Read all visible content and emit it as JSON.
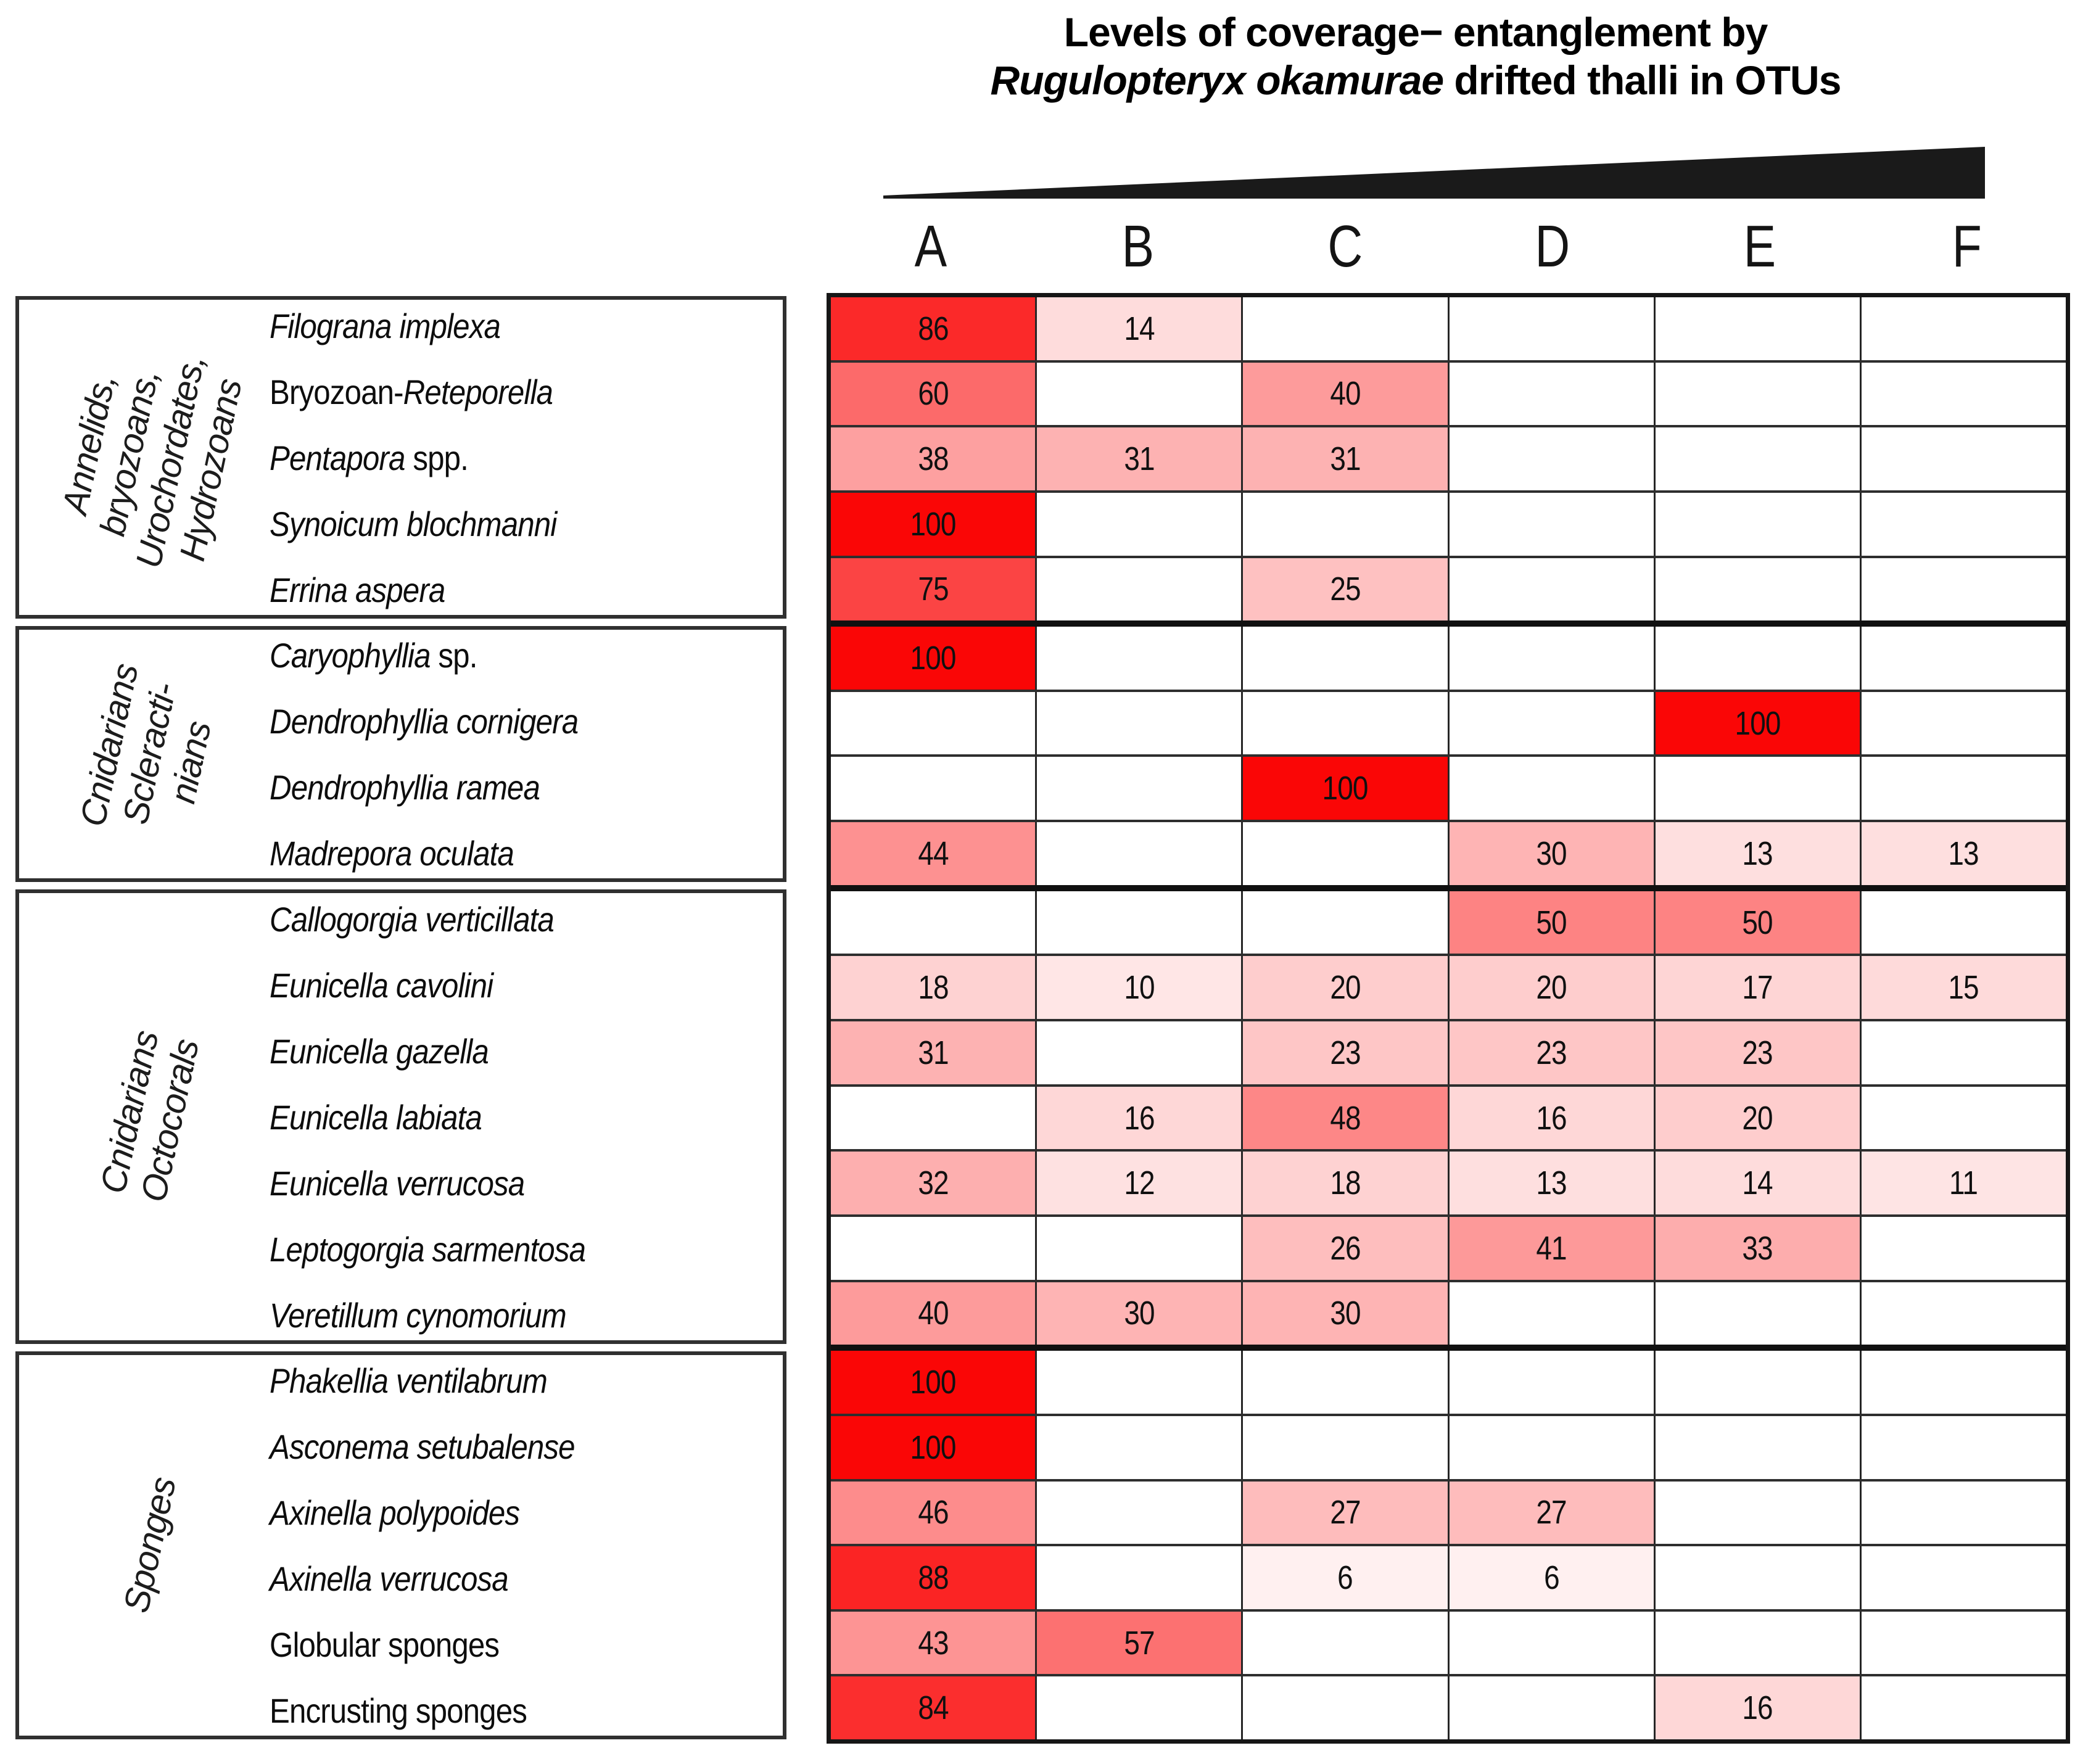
{
  "title": {
    "line1": "Levels of coverage− entanglement by",
    "line2_italic": "Rugulopteryx okamurae",
    "line2_rest": " drifted thalli in OTUs"
  },
  "colors": {
    "scale_min": "#FFFFFF",
    "scale_max": "#FA0606",
    "triangle": "#1A1A1A",
    "grid_outer": "#161616",
    "grid_row_line": "#2E2E2E",
    "grid_group_line": "#101010",
    "grid_col_line": "#262626",
    "box_border": "#303030"
  },
  "chart_data": {
    "type": "heatmap",
    "title": "Levels of coverage− entanglement by Rugulopteryx okamurae drifted thalli in OTUs",
    "columns": [
      "A",
      "B",
      "C",
      "D",
      "E",
      "F"
    ],
    "value_range": [
      0,
      100
    ],
    "color_scale": "white (0) to red (100), linear",
    "legend_hint": "black wedge triangle above columns indicates increasing coverage-entanglement from A to F",
    "groups": [
      {
        "label_lines": [
          "Annelids,",
          "bryozoans,",
          "Urochordates,",
          "Hydrozoans"
        ],
        "rows": [
          {
            "label_segments": [
              {
                "text": "Filograna implexa",
                "italic": true
              }
            ],
            "values": [
              86,
              14,
              null,
              null,
              null,
              null
            ]
          },
          {
            "label_segments": [
              {
                "text": "Bryozoan-",
                "italic": false
              },
              {
                "text": "Reteporella",
                "italic": true
              }
            ],
            "values": [
              60,
              null,
              40,
              null,
              null,
              null
            ]
          },
          {
            "label_segments": [
              {
                "text": "Pentapora",
                "italic": true
              },
              {
                "text": " spp.",
                "italic": false
              }
            ],
            "values": [
              38,
              31,
              31,
              null,
              null,
              null
            ]
          },
          {
            "label_segments": [
              {
                "text": "Synoicum blochmanni",
                "italic": true
              }
            ],
            "values": [
              100,
              null,
              null,
              null,
              null,
              null
            ]
          },
          {
            "label_segments": [
              {
                "text": "Errina aspera",
                "italic": true
              }
            ],
            "values": [
              75,
              null,
              25,
              null,
              null,
              null
            ]
          }
        ]
      },
      {
        "label_lines": [
          "Cnidarians",
          "Scleracti-",
          "nians"
        ],
        "rows": [
          {
            "label_segments": [
              {
                "text": "Caryophyllia",
                "italic": true
              },
              {
                "text": " sp.",
                "italic": false
              }
            ],
            "values": [
              100,
              null,
              null,
              null,
              null,
              null
            ]
          },
          {
            "label_segments": [
              {
                "text": "Dendrophyllia cornigera",
                "italic": true
              }
            ],
            "values": [
              null,
              null,
              null,
              null,
              100,
              null
            ]
          },
          {
            "label_segments": [
              {
                "text": "Dendrophyllia ramea",
                "italic": true
              }
            ],
            "values": [
              null,
              null,
              100,
              null,
              null,
              null
            ]
          },
          {
            "label_segments": [
              {
                "text": "Madrepora oculata",
                "italic": true
              }
            ],
            "values": [
              44,
              null,
              null,
              30,
              13,
              13
            ]
          }
        ]
      },
      {
        "label_lines": [
          "Cnidarians",
          "Octocorals"
        ],
        "rows": [
          {
            "label_segments": [
              {
                "text": "Callogorgia verticillata",
                "italic": true
              }
            ],
            "values": [
              null,
              null,
              null,
              50,
              50,
              null
            ]
          },
          {
            "label_segments": [
              {
                "text": "Eunicella cavolini",
                "italic": true
              }
            ],
            "values": [
              18,
              10,
              20,
              20,
              17,
              15
            ]
          },
          {
            "label_segments": [
              {
                "text": "Eunicella gazella",
                "italic": true
              }
            ],
            "values": [
              31,
              null,
              23,
              23,
              23,
              null
            ]
          },
          {
            "label_segments": [
              {
                "text": "Eunicella labiata",
                "italic": true
              }
            ],
            "values": [
              null,
              16,
              48,
              16,
              20,
              null
            ]
          },
          {
            "label_segments": [
              {
                "text": "Eunicella verrucosa",
                "italic": true
              }
            ],
            "values": [
              32,
              12,
              18,
              13,
              14,
              11
            ]
          },
          {
            "label_segments": [
              {
                "text": "Leptogorgia sarmentosa",
                "italic": true
              }
            ],
            "values": [
              null,
              null,
              26,
              41,
              33,
              null
            ]
          },
          {
            "label_segments": [
              {
                "text": "Veretillum cynomorium",
                "italic": true
              }
            ],
            "values": [
              40,
              30,
              30,
              null,
              null,
              null
            ]
          }
        ]
      },
      {
        "label_lines": [
          "Sponges"
        ],
        "rows": [
          {
            "label_segments": [
              {
                "text": "Phakellia ventilabrum",
                "italic": true
              }
            ],
            "values": [
              100,
              null,
              null,
              null,
              null,
              null
            ]
          },
          {
            "label_segments": [
              {
                "text": "Asconema setubalense",
                "italic": true
              }
            ],
            "values": [
              100,
              null,
              null,
              null,
              null,
              null
            ]
          },
          {
            "label_segments": [
              {
                "text": "Axinella polypoides",
                "italic": true
              }
            ],
            "values": [
              46,
              null,
              27,
              27,
              null,
              null
            ]
          },
          {
            "label_segments": [
              {
                "text": "Axinella verrucosa",
                "italic": true
              }
            ],
            "values": [
              88,
              null,
              6,
              6,
              null,
              null
            ]
          },
          {
            "label_segments": [
              {
                "text": "Globular sponges",
                "italic": false
              }
            ],
            "values": [
              43,
              57,
              null,
              null,
              null,
              null
            ]
          },
          {
            "label_segments": [
              {
                "text": "Encrusting sponges",
                "italic": false
              }
            ],
            "values": [
              84,
              null,
              null,
              null,
              16,
              null
            ]
          }
        ]
      }
    ]
  }
}
